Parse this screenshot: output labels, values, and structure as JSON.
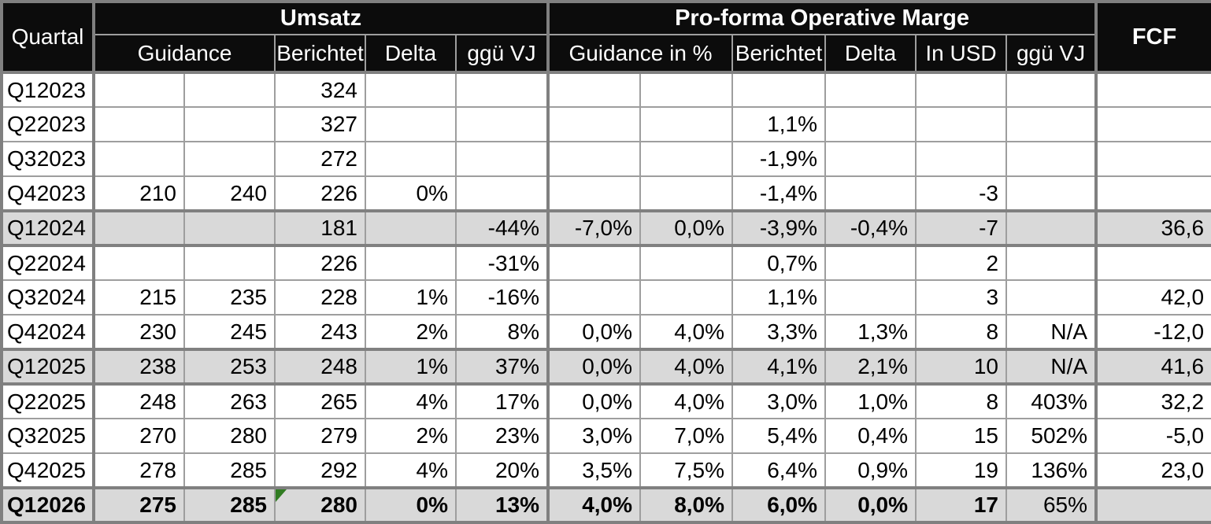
{
  "chart_data": {
    "type": "table",
    "header": {
      "quartal": "Quartal",
      "groups": [
        {
          "label": "Umsatz",
          "colspan": 5
        },
        {
          "label": "Pro-forma Operative Marge",
          "colspan": 6
        }
      ],
      "fcf": "FCF",
      "subheaders": [
        {
          "label": "Guidance"
        },
        {
          "label": "Berichtet"
        },
        {
          "label": "Delta"
        },
        {
          "label": "ggü VJ"
        },
        {
          "label": "Guidance in %"
        },
        {
          "label": "Berichtet"
        },
        {
          "label": "Delta"
        },
        {
          "label": "In USD"
        },
        {
          "label": "ggü VJ"
        }
      ]
    },
    "rows": [
      {
        "quarter": "Q1",
        "year": "2023",
        "cells": [
          "",
          "",
          "324",
          "",
          "",
          "",
          "",
          "",
          "",
          "",
          "",
          ""
        ],
        "shaded": false,
        "bold": false,
        "marker_cell": null,
        "regular_cells": []
      },
      {
        "quarter": "Q2",
        "year": "2023",
        "cells": [
          "",
          "",
          "327",
          "",
          "",
          "",
          "",
          "1,1%",
          "",
          "",
          "",
          ""
        ],
        "shaded": false,
        "bold": false,
        "marker_cell": null,
        "regular_cells": []
      },
      {
        "quarter": "Q3",
        "year": "2023",
        "cells": [
          "",
          "",
          "272",
          "",
          "",
          "",
          "",
          "-1,9%",
          "",
          "",
          "",
          ""
        ],
        "shaded": false,
        "bold": false,
        "marker_cell": null,
        "regular_cells": []
      },
      {
        "quarter": "Q4",
        "year": "2023",
        "cells": [
          "210",
          "240",
          "226",
          "0%",
          "",
          "",
          "",
          "-1,4%",
          "",
          "-3",
          "",
          ""
        ],
        "shaded": false,
        "bold": false,
        "marker_cell": null,
        "regular_cells": []
      },
      {
        "quarter": "Q1",
        "year": "2024",
        "cells": [
          "",
          "",
          "181",
          "",
          "-44%",
          "-7,0%",
          "0,0%",
          "-3,9%",
          "-0,4%",
          "-7",
          "",
          "36,6"
        ],
        "shaded": true,
        "bold": false,
        "marker_cell": null,
        "regular_cells": []
      },
      {
        "quarter": "Q2",
        "year": "2024",
        "cells": [
          "",
          "",
          "226",
          "",
          "-31%",
          "",
          "",
          "0,7%",
          "",
          "2",
          "",
          ""
        ],
        "shaded": false,
        "bold": false,
        "marker_cell": null,
        "regular_cells": []
      },
      {
        "quarter": "Q3",
        "year": "2024",
        "cells": [
          "215",
          "235",
          "228",
          "1%",
          "-16%",
          "",
          "",
          "1,1%",
          "",
          "3",
          "",
          "42,0"
        ],
        "shaded": false,
        "bold": false,
        "marker_cell": null,
        "regular_cells": []
      },
      {
        "quarter": "Q4",
        "year": "2024",
        "cells": [
          "230",
          "245",
          "243",
          "2%",
          "8%",
          "0,0%",
          "4,0%",
          "3,3%",
          "1,3%",
          "8",
          "N/A",
          "-12,0"
        ],
        "shaded": false,
        "bold": false,
        "marker_cell": null,
        "regular_cells": []
      },
      {
        "quarter": "Q1",
        "year": "2025",
        "cells": [
          "238",
          "253",
          "248",
          "1%",
          "37%",
          "0,0%",
          "4,0%",
          "4,1%",
          "2,1%",
          "10",
          "N/A",
          "41,6"
        ],
        "shaded": true,
        "bold": false,
        "marker_cell": null,
        "regular_cells": []
      },
      {
        "quarter": "Q2",
        "year": "2025",
        "cells": [
          "248",
          "263",
          "265",
          "4%",
          "17%",
          "0,0%",
          "4,0%",
          "3,0%",
          "1,0%",
          "8",
          "403%",
          "32,2"
        ],
        "shaded": false,
        "bold": false,
        "marker_cell": null,
        "regular_cells": []
      },
      {
        "quarter": "Q3",
        "year": "2025",
        "cells": [
          "270",
          "280",
          "279",
          "2%",
          "23%",
          "3,0%",
          "7,0%",
          "5,4%",
          "0,4%",
          "15",
          "502%",
          "-5,0"
        ],
        "shaded": false,
        "bold": false,
        "marker_cell": null,
        "regular_cells": []
      },
      {
        "quarter": "Q4",
        "year": "2025",
        "cells": [
          "278",
          "285",
          "292",
          "4%",
          "20%",
          "3,5%",
          "7,5%",
          "6,4%",
          "0,9%",
          "19",
          "136%",
          "23,0"
        ],
        "shaded": false,
        "bold": false,
        "marker_cell": null,
        "regular_cells": []
      },
      {
        "quarter": "Q1",
        "year": "2026",
        "cells": [
          "275",
          "285",
          "280",
          "0%",
          "13%",
          "4,0%",
          "8,0%",
          "6,0%",
          "0,0%",
          "17",
          "65%",
          ""
        ],
        "shaded": true,
        "bold": true,
        "marker_cell": 2,
        "regular_cells": [
          10
        ]
      }
    ]
  },
  "colors": {
    "header_bg": "#0c0c0c",
    "header_text": "#ffffff",
    "shaded_row_bg": "#d9d9d9",
    "row_bg": "#ffffff",
    "border_thin": "#9e9e9e",
    "border_thick": "#808080",
    "marker_green": "#317c22",
    "text": "#000000"
  }
}
